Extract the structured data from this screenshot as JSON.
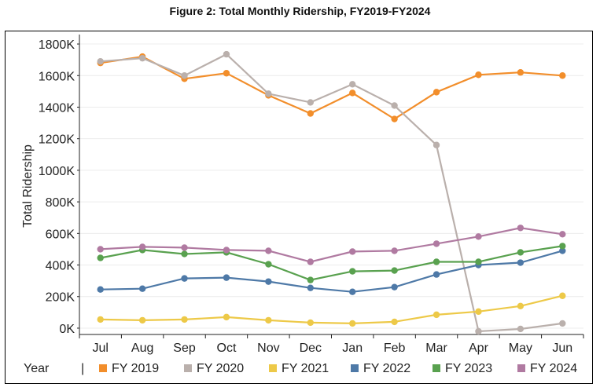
{
  "figure_title": "Figure 2: Total Monthly Ridership, FY2019-FY2024",
  "chart_data": {
    "type": "line",
    "title": "Figure 2: Total Monthly Ridership, FY2019-FY2024",
    "xlabel": "",
    "ylabel": "Total Ridership",
    "categories": [
      "Jul",
      "Aug",
      "Sep",
      "Oct",
      "Nov",
      "Dec",
      "Jan",
      "Feb",
      "Mar",
      "Apr",
      "May",
      "Jun"
    ],
    "y_ticks": [
      {
        "value": 0,
        "label": "0K"
      },
      {
        "value": 200000,
        "label": "200K"
      },
      {
        "value": 400000,
        "label": "400K"
      },
      {
        "value": 600000,
        "label": "600K"
      },
      {
        "value": 800000,
        "label": "800K"
      },
      {
        "value": 1000000,
        "label": "1000K"
      },
      {
        "value": 1200000,
        "label": "1200K"
      },
      {
        "value": 1400000,
        "label": "1400K"
      },
      {
        "value": 1600000,
        "label": "1600K"
      },
      {
        "value": 1800000,
        "label": "1800K"
      }
    ],
    "ylim": [
      -40000,
      1840000
    ],
    "grid": true,
    "legend_position": "bottom",
    "legend_title": "Year",
    "legend_separator": "|",
    "series": [
      {
        "name": "FY 2019",
        "color": "#F28E2B",
        "values": [
          1680000,
          1720000,
          1580000,
          1615000,
          1475000,
          1360000,
          1490000,
          1325000,
          1495000,
          1605000,
          1620000,
          1600000
        ]
      },
      {
        "name": "FY 2020",
        "color": "#BAB0AC",
        "values": [
          1690000,
          1710000,
          1600000,
          1735000,
          1485000,
          1430000,
          1545000,
          1410000,
          1160000,
          -20000,
          -5000,
          30000
        ]
      },
      {
        "name": "FY 2021",
        "color": "#EDC948",
        "values": [
          55000,
          50000,
          55000,
          70000,
          50000,
          35000,
          30000,
          40000,
          85000,
          105000,
          140000,
          205000
        ]
      },
      {
        "name": "FY 2022",
        "color": "#4E79A7",
        "values": [
          245000,
          250000,
          315000,
          320000,
          295000,
          255000,
          230000,
          260000,
          340000,
          400000,
          415000,
          490000
        ]
      },
      {
        "name": "FY 2023",
        "color": "#59A14F",
        "values": [
          445000,
          495000,
          470000,
          480000,
          405000,
          305000,
          360000,
          365000,
          420000,
          420000,
          480000,
          520000
        ]
      },
      {
        "name": "FY 2024",
        "color": "#B07AA1",
        "values": [
          500000,
          515000,
          510000,
          495000,
          490000,
          420000,
          485000,
          490000,
          535000,
          580000,
          635000,
          595000
        ]
      }
    ]
  }
}
